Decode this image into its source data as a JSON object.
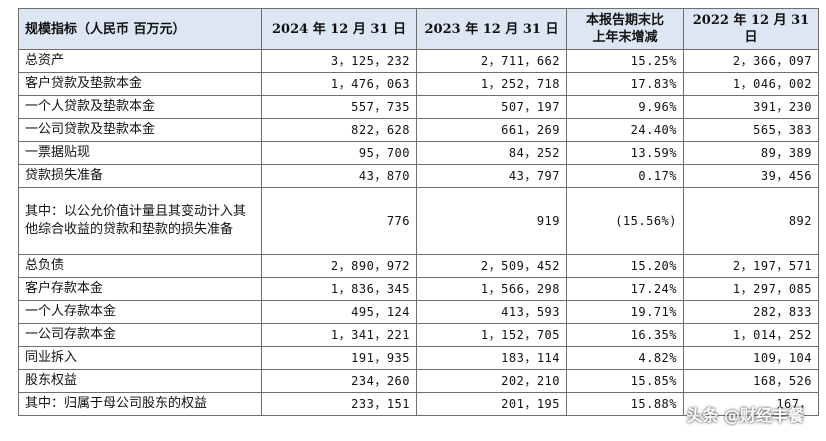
{
  "table": {
    "headers": [
      "规模指标（人民币 百万元）",
      "2024 年 12 月 31 日",
      "2023 年 12 月 31 日",
      "本报告期末比\n上年末增减",
      "2022 年 12 月 31 日"
    ],
    "rows": [
      [
        "总资产",
        "3，125，232",
        "2，711，662",
        "15.25%",
        "2，366，097"
      ],
      [
        "客户贷款及垫款本金",
        "1，476，063",
        "1，252，718",
        "17.83%",
        "1，046，002"
      ],
      [
        "一个人贷款及垫款本金",
        "557，735",
        "507，197",
        "9.96%",
        "391，230"
      ],
      [
        "一公司贷款及垫款本金",
        "822，628",
        "661，269",
        "24.40%",
        "565，383"
      ],
      [
        "一票据贴现",
        "95，700",
        "84，252",
        "13.59%",
        "89，389"
      ],
      [
        "贷款损失准备",
        "43，870",
        "43，797",
        "0.17%",
        "39，456"
      ],
      [
        "其中：以公允价值计量且其变动计入其他综合收益的贷款和垫款的损失准备",
        "776",
        "919",
        "(15.56%)",
        "892"
      ],
      [
        "总负债",
        "2，890，972",
        "2，509，452",
        "15.20%",
        "2，197，571"
      ],
      [
        "客户存款本金",
        "1，836，345",
        "1，566，298",
        "17.24%",
        "1，297，085"
      ],
      [
        "一个人存款本金",
        "495，124",
        "413，593",
        "19.71%",
        "282，833"
      ],
      [
        "一公司存款本金",
        "1，341，221",
        "1，152，705",
        "16.35%",
        "1，014，252"
      ],
      [
        "同业拆入",
        "191，935",
        "183，114",
        "4.82%",
        "109，104"
      ],
      [
        "股东权益",
        "234，260",
        "202，210",
        "15.85%",
        "168，526"
      ],
      [
        "其中：归属于母公司股东的权益",
        "233，151",
        "201，195",
        "15.88%",
        "167，"
      ]
    ]
  },
  "watermark": "头条 @财经丰餐"
}
